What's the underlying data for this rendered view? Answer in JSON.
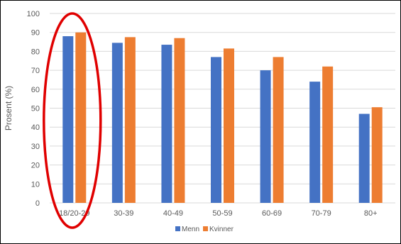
{
  "chart_data": {
    "type": "bar",
    "title": "",
    "xlabel": "",
    "ylabel": "Prosent (%)",
    "ylim": [
      0,
      100
    ],
    "yticks": [
      0,
      10,
      20,
      30,
      40,
      50,
      60,
      70,
      80,
      90,
      100
    ],
    "grid": true,
    "legend_position": "bottom",
    "categories": [
      "18/20-29",
      "30-39",
      "40-49",
      "50-59",
      "60-69",
      "70-79",
      "80+"
    ],
    "series": [
      {
        "name": "Menn",
        "color": "#4472C4",
        "values": [
          88,
          84.5,
          83.5,
          77,
          70,
          64,
          47
        ]
      },
      {
        "name": "Kvinner",
        "color": "#ED7D31",
        "values": [
          90,
          87.5,
          87,
          81.5,
          77,
          72,
          50.5
        ]
      }
    ],
    "annotations": [
      {
        "type": "ellipse",
        "category": "18/20-29",
        "color": "#E00000"
      }
    ]
  }
}
